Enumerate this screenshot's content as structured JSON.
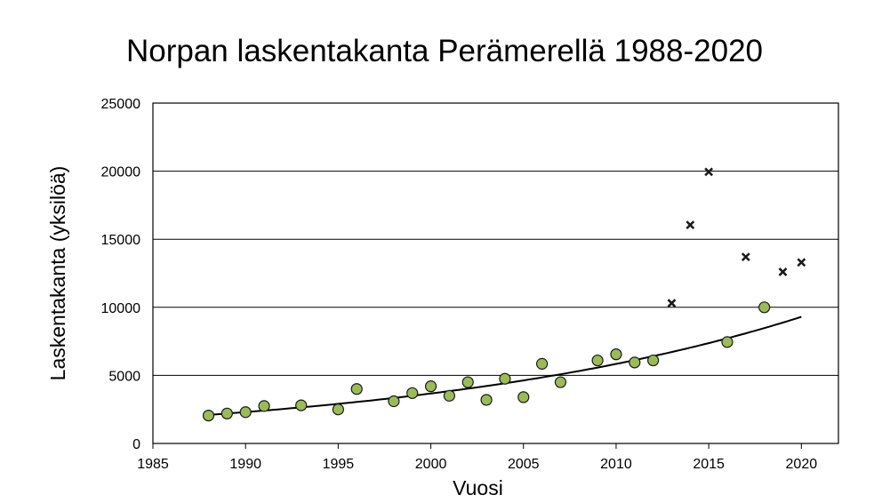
{
  "chart_data": {
    "type": "scatter",
    "title": "Norpan laskentakanta Perämerellä 1988-2020",
    "xlabel": "Vuosi",
    "ylabel": "Laskentakanta (yksilöä)",
    "xlim": [
      1985,
      2022
    ],
    "ylim": [
      0,
      25000
    ],
    "xticks": [
      1985,
      1990,
      1995,
      2000,
      2005,
      2010,
      2015,
      2020
    ],
    "yticks": [
      0,
      5000,
      10000,
      15000,
      20000,
      25000
    ],
    "grid": "horizontal",
    "colors": {
      "circle_fill": "#9bbb59",
      "marker_edge": "#1a1a1a",
      "trend": "#000000"
    },
    "series": [
      {
        "marker": "circle",
        "x": [
          1988,
          1989,
          1990,
          1991,
          1993,
          1995,
          1996,
          1998,
          1999,
          2000,
          2001,
          2002,
          2003,
          2004,
          2005,
          2006,
          2007,
          2009,
          2010,
          2011,
          2012,
          2016,
          2018
        ],
        "y": [
          2050,
          2200,
          2300,
          2750,
          2800,
          2500,
          4000,
          3100,
          3700,
          4200,
          3500,
          4500,
          3200,
          4750,
          3400,
          5850,
          4500,
          6100,
          6550,
          5950,
          6100,
          7450,
          10000
        ]
      },
      {
        "marker": "cross",
        "x": [
          2013,
          2014,
          2015,
          2017,
          2019,
          2020
        ],
        "y": [
          10300,
          16050,
          19950,
          13700,
          12600,
          13300
        ]
      }
    ],
    "trendline": {
      "type": "exponential",
      "x_range": [
        1988,
        2020
      ],
      "y_start": 2100,
      "y_end": 9300
    }
  }
}
